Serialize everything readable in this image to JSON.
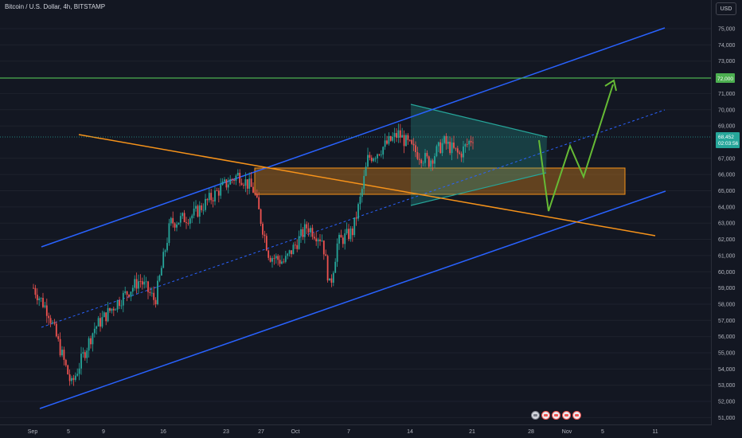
{
  "header": {
    "symbol_title": "Bitcoin / U.S. Dollar, 4h, BITSTAMP",
    "currency_button": "USD"
  },
  "price_axis": {
    "ticks": [
      "75,000",
      "74,000",
      "73,000",
      "71,000",
      "70,000",
      "69,000",
      "67,000",
      "66,000",
      "65,000",
      "64,000",
      "63,000",
      "62,000",
      "61,000",
      "60,000",
      "59,000",
      "58,000",
      "57,000",
      "56,000",
      "55,000",
      "54,000",
      "53,000",
      "52,000",
      "51,000"
    ],
    "tick_values": [
      75000,
      74000,
      73000,
      71000,
      70000,
      69000,
      67000,
      66000,
      65000,
      64000,
      63000,
      62000,
      61000,
      60000,
      59000,
      58000,
      57000,
      56000,
      55000,
      54000,
      53000,
      52000,
      51000
    ],
    "target_label": "72,000",
    "current_price_label": "68,452",
    "current_countdown": "02:03:56"
  },
  "time_axis": {
    "labels": [
      "Sep",
      "5",
      "9",
      "16",
      "23",
      "27",
      "Oct",
      "7",
      "14",
      "21",
      "28",
      "Nov",
      "5",
      "11"
    ]
  },
  "colors": {
    "background": "#131722",
    "up_candle": "#26a69a",
    "down_candle": "#ef5350",
    "channel": "#2962ff",
    "trendline": "#f7931a",
    "target_line": "#4caf50",
    "projection": "#66bb35",
    "triangle": "#26a69a",
    "zone": "#f7931a"
  },
  "chart_data": {
    "type": "candlestick",
    "timeframe": "4h",
    "title": "Bitcoin / U.S. Dollar, 4h, BITSTAMP",
    "ylim": [
      50500,
      75500
    ],
    "price_path": [
      {
        "date": "Sep 1",
        "price": 59000
      },
      {
        "date": "Sep 3",
        "price": 57500
      },
      {
        "date": "Sep 6",
        "price": 53000
      },
      {
        "date": "Sep 7",
        "price": 54200
      },
      {
        "date": "Sep 9",
        "price": 56500
      },
      {
        "date": "Sep 12",
        "price": 58100
      },
      {
        "date": "Sep 15",
        "price": 59500
      },
      {
        "date": "Sep 17",
        "price": 58200
      },
      {
        "date": "Sep 19",
        "price": 63000
      },
      {
        "date": "Sep 22",
        "price": 63500
      },
      {
        "date": "Sep 26",
        "price": 65300
      },
      {
        "date": "Sep 28",
        "price": 66000
      },
      {
        "date": "Sep 30",
        "price": 65000
      },
      {
        "date": "Oct 2",
        "price": 61000
      },
      {
        "date": "Oct 4",
        "price": 60600
      },
      {
        "date": "Oct 7",
        "price": 62800
      },
      {
        "date": "Oct 9",
        "price": 62000
      },
      {
        "date": "Oct 10",
        "price": 59000
      },
      {
        "date": "Oct 11",
        "price": 61800
      },
      {
        "date": "Oct 13",
        "price": 62500
      },
      {
        "date": "Oct 14",
        "price": 64500
      },
      {
        "date": "Oct 15",
        "price": 67000
      },
      {
        "date": "Oct 16",
        "price": 67300
      },
      {
        "date": "Oct 19",
        "price": 68500
      },
      {
        "date": "Oct 21",
        "price": 67500
      },
      {
        "date": "Oct 23",
        "price": 66800
      },
      {
        "date": "Oct 25",
        "price": 68000
      },
      {
        "date": "Oct 27",
        "price": 67200
      },
      {
        "date": "Oct 29",
        "price": 68452
      }
    ],
    "annotations": {
      "target_level": 72000,
      "current_price": 68452,
      "support_zone": [
        64800,
        66500
      ],
      "projection_path": [
        {
          "date": "Oct 29",
          "price": 68200
        },
        {
          "date": "Oct 30",
          "price": 64000
        },
        {
          "date": "Nov 1",
          "price": 67600
        },
        {
          "date": "Nov 3",
          "price": 66000
        },
        {
          "date": "Nov 7",
          "price": 72000
        }
      ]
    }
  }
}
